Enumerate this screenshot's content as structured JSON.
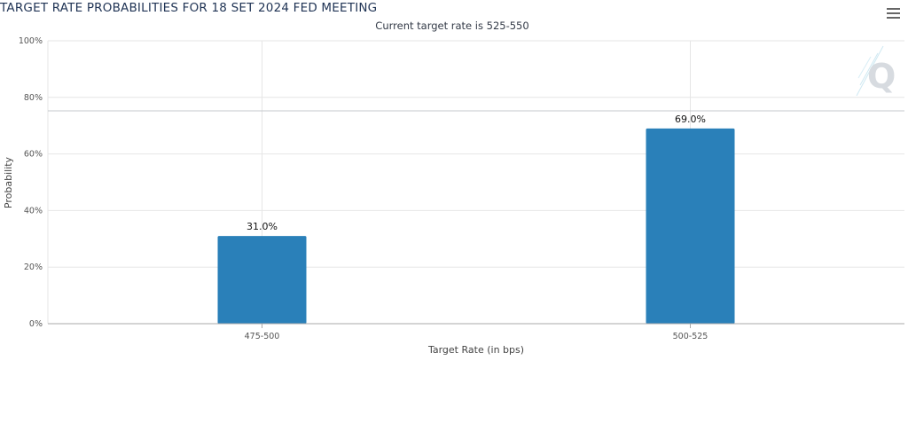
{
  "header": {
    "title": "TARGET RATE PROBABILITIES FOR 18 SET 2024 FED MEETING",
    "subtitle": "Current target rate is 525-550"
  },
  "icons": {
    "menu": "hamburger-menu-icon",
    "watermark": "q-logo-watermark"
  },
  "chart_data": {
    "type": "bar",
    "categories": [
      "475-500",
      "500-525"
    ],
    "values": [
      31.0,
      69.0
    ],
    "data_labels": [
      "31.0%",
      "69.0%"
    ],
    "xlabel": "Target Rate (in bps)",
    "ylabel": "Probability",
    "ylim": [
      0,
      100
    ],
    "yticks": [
      0,
      20,
      40,
      60,
      80,
      100
    ],
    "ytick_labels": [
      "0%",
      "20%",
      "40%",
      "60%",
      "80%",
      "100%"
    ],
    "grid": true,
    "bar_color": "#2a80b9"
  }
}
